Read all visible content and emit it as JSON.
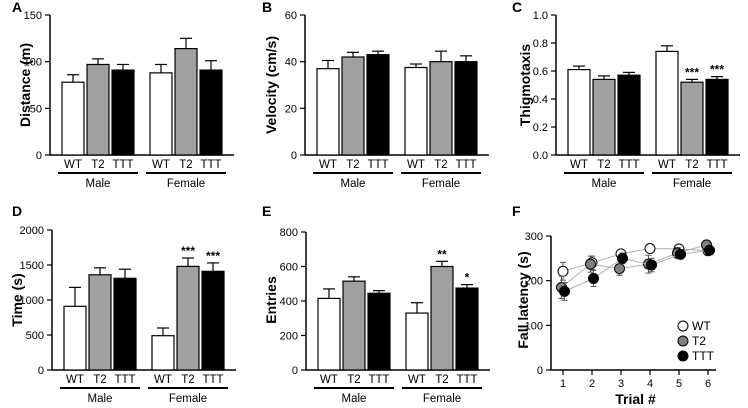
{
  "colors": {
    "WT": "#ffffff",
    "T2": "#a0a0a0",
    "TTT": "#000000"
  },
  "chart_data": [
    {
      "panel": "A",
      "type": "bar",
      "ylabel": "Distance  (m)",
      "ylim": [
        0,
        150
      ],
      "yticks": [
        "0",
        "50",
        "100",
        "150"
      ],
      "ytick_values": [
        0,
        50,
        100,
        150
      ],
      "groups": [
        "Male",
        "Female"
      ],
      "categories": [
        "WT",
        "T2",
        "TTT"
      ],
      "series": [
        {
          "group": "Male",
          "values": [
            78,
            97,
            91
          ],
          "errors": [
            8,
            6,
            6
          ],
          "sig": [
            "",
            "",
            ""
          ]
        },
        {
          "group": "Female",
          "values": [
            88,
            114,
            91
          ],
          "errors": [
            9,
            11,
            10
          ],
          "sig": [
            "",
            "",
            ""
          ]
        }
      ]
    },
    {
      "panel": "B",
      "type": "bar",
      "ylabel": "Velocity  (cm/s)",
      "ylim": [
        0,
        60
      ],
      "yticks": [
        "0",
        "20",
        "40",
        "60"
      ],
      "ytick_values": [
        0,
        20,
        40,
        60
      ],
      "groups": [
        "Male",
        "Female"
      ],
      "categories": [
        "WT",
        "T2",
        "TTT"
      ],
      "series": [
        {
          "group": "Male",
          "values": [
            37,
            42,
            43
          ],
          "errors": [
            3.5,
            2,
            1.5
          ],
          "sig": [
            "",
            "",
            ""
          ]
        },
        {
          "group": "Female",
          "values": [
            37.5,
            40,
            40
          ],
          "errors": [
            1.5,
            4.5,
            2.5
          ],
          "sig": [
            "",
            "",
            ""
          ]
        }
      ]
    },
    {
      "panel": "C",
      "type": "bar",
      "ylabel": "Thigmotaxis",
      "ylim": [
        0,
        1.0
      ],
      "yticks": [
        "0.0",
        "0.2",
        "0.4",
        "0.6",
        "0.8",
        "1.0"
      ],
      "ytick_values": [
        0,
        0.2,
        0.4,
        0.6,
        0.8,
        1.0
      ],
      "groups": [
        "Male",
        "Female"
      ],
      "categories": [
        "WT",
        "T2",
        "TTT"
      ],
      "series": [
        {
          "group": "Male",
          "values": [
            0.61,
            0.54,
            0.57
          ],
          "errors": [
            0.025,
            0.025,
            0.02
          ],
          "sig": [
            "",
            "",
            ""
          ]
        },
        {
          "group": "Female",
          "values": [
            0.74,
            0.52,
            0.54
          ],
          "errors": [
            0.04,
            0.02,
            0.02
          ],
          "sig": [
            "",
            "***",
            "***"
          ]
        }
      ]
    },
    {
      "panel": "D",
      "type": "bar",
      "ylabel": "Time  (s)",
      "ylim": [
        0,
        2000
      ],
      "yticks": [
        "0",
        "500",
        "1000",
        "1500",
        "2000"
      ],
      "ytick_values": [
        0,
        500,
        1000,
        1500,
        2000
      ],
      "groups": [
        "Male",
        "Female"
      ],
      "categories": [
        "WT",
        "T2",
        "TTT"
      ],
      "series": [
        {
          "group": "Male",
          "values": [
            910,
            1360,
            1310
          ],
          "errors": [
            270,
            100,
            130
          ],
          "sig": [
            "",
            "",
            ""
          ]
        },
        {
          "group": "Female",
          "values": [
            490,
            1480,
            1410
          ],
          "errors": [
            110,
            120,
            120
          ],
          "sig": [
            "",
            "***",
            "***"
          ]
        }
      ]
    },
    {
      "panel": "E",
      "type": "bar",
      "ylabel": "Entries",
      "ylim": [
        0,
        800
      ],
      "yticks": [
        "0",
        "200",
        "400",
        "600",
        "800"
      ],
      "ytick_values": [
        0,
        200,
        400,
        600,
        800
      ],
      "groups": [
        "Male",
        "Female"
      ],
      "categories": [
        "WT",
        "T2",
        "TTT"
      ],
      "series": [
        {
          "group": "Male",
          "values": [
            415,
            515,
            445
          ],
          "errors": [
            55,
            25,
            15
          ],
          "sig": [
            "",
            "",
            ""
          ]
        },
        {
          "group": "Female",
          "values": [
            330,
            600,
            475
          ],
          "errors": [
            60,
            30,
            20
          ],
          "sig": [
            "",
            "**",
            "*"
          ]
        }
      ]
    },
    {
      "panel": "F",
      "type": "line",
      "ylabel": "Fall latency (s)",
      "xlabel": "Trial  #",
      "ylim": [
        0,
        300
      ],
      "yticks": [
        "0",
        "100",
        "200",
        "300"
      ],
      "ytick_values": [
        0,
        100,
        200,
        300
      ],
      "x": [
        1,
        2,
        3,
        4,
        5,
        6
      ],
      "xticks": [
        "1",
        "2",
        "3",
        "4",
        "5",
        "6"
      ],
      "series": [
        {
          "name": "WT",
          "values": [
            221,
            240,
            260,
            272,
            271,
            267
          ],
          "errors": [
            20,
            15,
            8,
            6,
            8,
            10
          ]
        },
        {
          "name": "T2",
          "values": [
            185,
            237,
            227,
            237,
            262,
            280
          ],
          "errors": [
            25,
            18,
            15,
            20,
            12,
            8
          ]
        },
        {
          "name": "TTT",
          "values": [
            176,
            205,
            250,
            235,
            259,
            268
          ],
          "errors": [
            20,
            18,
            12,
            15,
            10,
            8
          ]
        }
      ],
      "legend": [
        "WT",
        "T2",
        "TTT"
      ]
    }
  ]
}
